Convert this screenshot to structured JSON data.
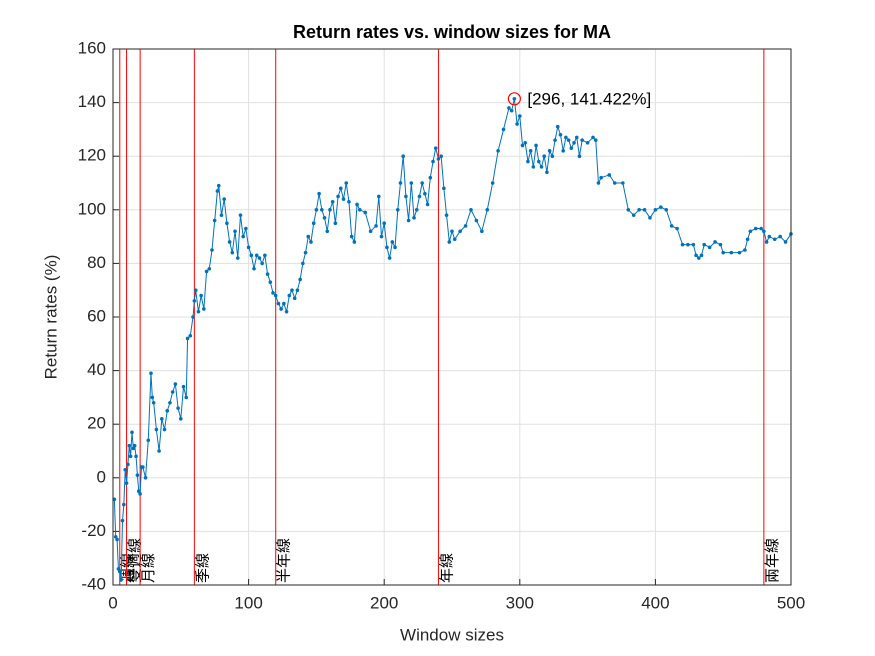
{
  "chart_data": {
    "type": "line",
    "title": "Return rates vs. window sizes for MA",
    "x_label": "Window sizes",
    "y_label": "Return rates (%)",
    "xlim": [
      0,
      500
    ],
    "xticks": [
      0,
      100,
      200,
      300,
      400,
      500
    ],
    "ylim": [
      -40,
      160
    ],
    "yticks": [
      -40,
      -20,
      0,
      20,
      40,
      60,
      80,
      100,
      120,
      140,
      160
    ],
    "grid": true,
    "series": [
      {
        "color": "#0072bd",
        "x": [
          1,
          2,
          3,
          4,
          5,
          6,
          7,
          8,
          9,
          10,
          11,
          12,
          13,
          14,
          15,
          16,
          17,
          18,
          19,
          20,
          21,
          22,
          24,
          26,
          28,
          29,
          30,
          32,
          34,
          36,
          38,
          40,
          42,
          44,
          46,
          48,
          50,
          52,
          54,
          55,
          57,
          59,
          60,
          61,
          63,
          65,
          67,
          69,
          71,
          73,
          75,
          77,
          78,
          80,
          82,
          84,
          86,
          88,
          90,
          92,
          94,
          96,
          98,
          100,
          102,
          104,
          106,
          108,
          110,
          112,
          114,
          116,
          118,
          120,
          122,
          124,
          126,
          128,
          130,
          132,
          134,
          136,
          138,
          140,
          142,
          144,
          146,
          148,
          150,
          152,
          154,
          156,
          158,
          160,
          162,
          164,
          166,
          168,
          170,
          172,
          174,
          176,
          178,
          180,
          182,
          186,
          190,
          194,
          196,
          198,
          200,
          202,
          204,
          206,
          208,
          210,
          212,
          214,
          216,
          218,
          220,
          222,
          224,
          226,
          228,
          230,
          232,
          234,
          236,
          238,
          240,
          242,
          244,
          246,
          248,
          250,
          252,
          256,
          260,
          264,
          268,
          272,
          276,
          280,
          284,
          288,
          292,
          294,
          296,
          298,
          300,
          302,
          304,
          306,
          308,
          310,
          312,
          314,
          316,
          318,
          320,
          322,
          324,
          326,
          328,
          330,
          332,
          334,
          336,
          338,
          340,
          342,
          344,
          346,
          350,
          354,
          356,
          358,
          360,
          366,
          370,
          376,
          380,
          384,
          388,
          392,
          396,
          400,
          404,
          408,
          412,
          416,
          420,
          424,
          428,
          430,
          432,
          434,
          436,
          440,
          444,
          448,
          450,
          456,
          462,
          466,
          468,
          470,
          474,
          478,
          480,
          482,
          484,
          488,
          492,
          496,
          500
        ],
        "values": [
          -8,
          -22,
          -23,
          -34,
          -35,
          -38,
          -16,
          -10,
          3,
          -2,
          5,
          12,
          8,
          17,
          11,
          12,
          8,
          1,
          -5,
          -6,
          4,
          4,
          0,
          14,
          39,
          30,
          28,
          18,
          10,
          22,
          18,
          25,
          28,
          32,
          35,
          26,
          22,
          34,
          30,
          52,
          53,
          60,
          66,
          70,
          62,
          68,
          63,
          77,
          78,
          85,
          96,
          107,
          109,
          98,
          104,
          95,
          88,
          84,
          92,
          82,
          98,
          90,
          93,
          86,
          83,
          78,
          83,
          82,
          80,
          83,
          76,
          73,
          69,
          68,
          65,
          63,
          65,
          62,
          68,
          70,
          67,
          70,
          74,
          80,
          84,
          90,
          88,
          95,
          100,
          106,
          100,
          97,
          92,
          100,
          103,
          95,
          105,
          108,
          104,
          110,
          103,
          90,
          88,
          102,
          100,
          99,
          92,
          94,
          105,
          90,
          95,
          86,
          82,
          88,
          86,
          100,
          110,
          120,
          105,
          96,
          110,
          97,
          100,
          105,
          110,
          106,
          102,
          112,
          118,
          123,
          119,
          120,
          108,
          98,
          88,
          92,
          89,
          92,
          94,
          100,
          96,
          92,
          100,
          110,
          122,
          130,
          138,
          137,
          141.422,
          132,
          135,
          124,
          125,
          118,
          122,
          116,
          124,
          118,
          116,
          120,
          114,
          122,
          120,
          126,
          131,
          128,
          122,
          127,
          126,
          123,
          125,
          127,
          120,
          126,
          125,
          127,
          126,
          110,
          112,
          113,
          110,
          110,
          100,
          98,
          100,
          100,
          97,
          100,
          101,
          100,
          94,
          93,
          87,
          87,
          87,
          83,
          82,
          83,
          87,
          86,
          88,
          87,
          84,
          84,
          84,
          85,
          89,
          92,
          93,
          93,
          92,
          88,
          90,
          89,
          90,
          88,
          91
        ]
      }
    ],
    "vlines": {
      "color": "#ff0000",
      "x": [
        5,
        10,
        20,
        60,
        120,
        240,
        480
      ],
      "labels": [
        "週線",
        "雙週線",
        "月線",
        "季線",
        "半年線",
        "年線",
        "兩年線"
      ]
    },
    "highlight": {
      "x": 296,
      "y": 141.422,
      "label": "[296, 141.422%]",
      "color": "#ff0000"
    }
  }
}
